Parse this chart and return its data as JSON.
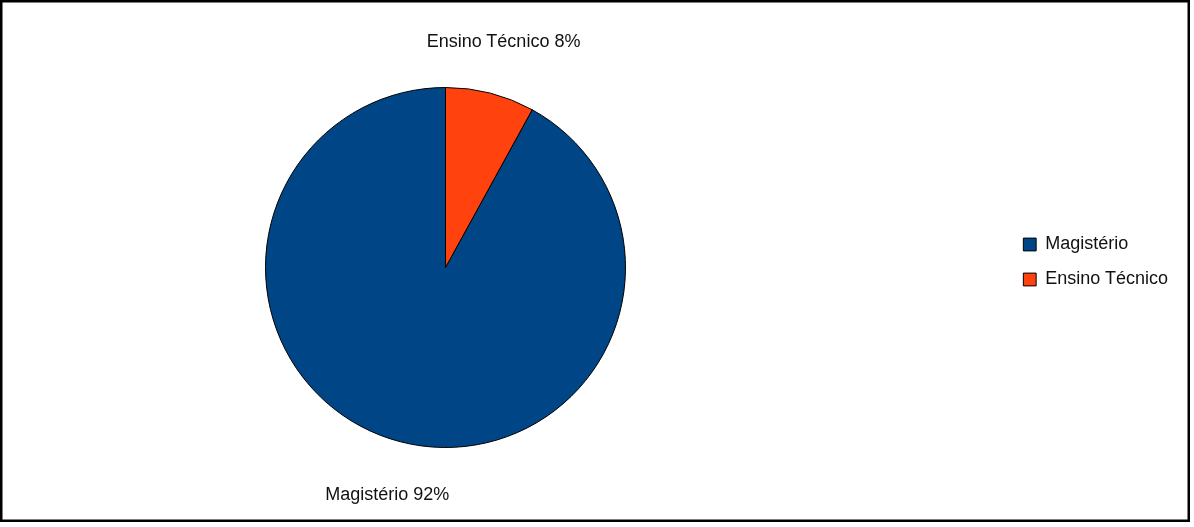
{
  "chart_data": {
    "type": "pie",
    "categories": [
      "Magistério",
      "Ensino Técnico"
    ],
    "values": [
      92,
      8
    ],
    "colors": [
      "#004586",
      "#ff420e"
    ],
    "value_labels": [
      "Magistério 92%",
      "Ensino Técnico 8%"
    ],
    "legend": "right"
  }
}
